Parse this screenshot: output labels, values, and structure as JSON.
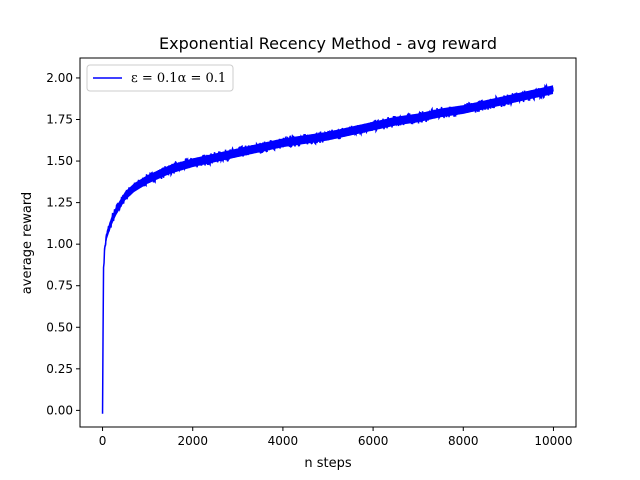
{
  "chart_data": {
    "type": "line",
    "title": "Exponential Recency Method - avg reward",
    "xlabel": "n steps",
    "ylabel": "average reward",
    "xlim": [
      -500,
      10500
    ],
    "ylim": [
      -0.1,
      2.12
    ],
    "x_ticks": [
      0,
      2000,
      4000,
      6000,
      8000,
      10000
    ],
    "x_tick_labels": [
      "0",
      "2000",
      "4000",
      "6000",
      "8000",
      "10000"
    ],
    "y_ticks": [
      0.0,
      0.25,
      0.5,
      0.75,
      1.0,
      1.25,
      1.5,
      1.75,
      2.0
    ],
    "y_tick_labels": [
      "0.00",
      "0.25",
      "0.50",
      "0.75",
      "1.00",
      "1.25",
      "1.50",
      "1.75",
      "2.00"
    ],
    "grid": false,
    "legend_position": "top-left",
    "series": [
      {
        "name": "ε = 0.1α = 0.1",
        "color": "#0000ff",
        "x": [
          0,
          20,
          50,
          100,
          200,
          300,
          500,
          700,
          1000,
          1500,
          2000,
          2500,
          3000,
          3500,
          4000,
          4500,
          5000,
          5500,
          6000,
          6500,
          7000,
          7500,
          8000,
          8500,
          9000,
          9500,
          10000
        ],
        "values": [
          -0.02,
          0.85,
          0.98,
          1.06,
          1.14,
          1.2,
          1.29,
          1.34,
          1.39,
          1.45,
          1.49,
          1.52,
          1.55,
          1.58,
          1.61,
          1.63,
          1.65,
          1.68,
          1.71,
          1.74,
          1.76,
          1.79,
          1.81,
          1.84,
          1.87,
          1.9,
          1.93
        ],
        "band": 0.035
      }
    ]
  }
}
